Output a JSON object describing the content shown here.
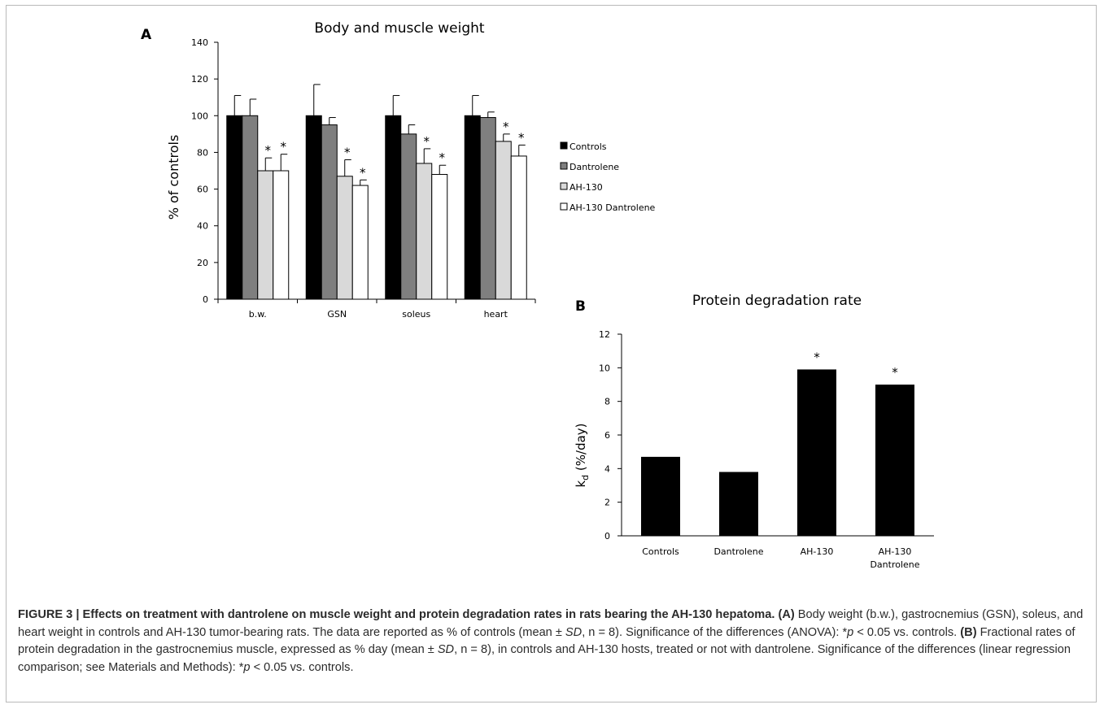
{
  "charts": [
    {
      "panel": "A",
      "chart_data": {
        "type": "bar",
        "title": "Body and muscle weight",
        "ylabel": "% of controls",
        "ylim": [
          0,
          140
        ],
        "yticks": [
          0,
          20,
          40,
          60,
          80,
          100,
          120,
          140
        ],
        "categories": [
          "b.w.",
          "GSN",
          "soleus",
          "heart"
        ],
        "legend_position": "right",
        "series": [
          {
            "name": "Controls",
            "color": "#000000",
            "values": [
              100,
              100,
              100,
              100
            ],
            "errors": [
              11,
              17,
              11,
              11
            ],
            "significant": [
              false,
              false,
              false,
              false
            ]
          },
          {
            "name": "Dantrolene",
            "color": "#7f7f7f",
            "values": [
              100,
              95,
              90,
              99
            ],
            "errors": [
              9,
              4,
              5,
              3
            ],
            "significant": [
              false,
              false,
              false,
              false
            ]
          },
          {
            "name": "AH-130",
            "color": "#d9d9d9",
            "values": [
              70,
              67,
              74,
              86
            ],
            "errors": [
              7,
              9,
              8,
              4
            ],
            "significant": [
              true,
              true,
              true,
              true
            ]
          },
          {
            "name": "AH-130 Dantrolene",
            "color": "#ffffff",
            "values": [
              70,
              62,
              68,
              78
            ],
            "errors": [
              9,
              3,
              5,
              6
            ],
            "significant": [
              true,
              true,
              true,
              true
            ]
          }
        ],
        "significance_marker": "*"
      }
    },
    {
      "panel": "B",
      "chart_data": {
        "type": "bar",
        "title": "Protein degradation rate",
        "ylabel_main": "k",
        "ylabel_sub": "d",
        "ylabel_rest": " (%/day)",
        "ylim": [
          0,
          12
        ],
        "yticks": [
          0,
          2,
          4,
          6,
          8,
          10,
          12
        ],
        "categories": [
          [
            "Controls"
          ],
          [
            "Dantrolene"
          ],
          [
            "AH-130"
          ],
          [
            "AH-130",
            "Dantrolene"
          ]
        ],
        "values": [
          4.7,
          3.8,
          9.9,
          9.0
        ],
        "significant": [
          false,
          false,
          true,
          true
        ],
        "color": "#000000",
        "significance_marker": "*"
      }
    }
  ],
  "caption": {
    "figure_label": "FIGURE 3 | Effects on treatment with dantrolene on muscle weight and protein degradation rates in rats bearing the AH-130 hepatoma.",
    "part_a_label": "(A)",
    "part_a_text_1": " Body weight (b.w.), gastrocnemius (GSN), soleus, and heart weight in controls and AH-130 tumor-bearing rats. The data are reported as % of controls (mean ± ",
    "sd": "SD",
    "n_a": ", n = 8). Significance of the differences (ANOVA): *",
    "p_a": "p",
    "after_p_a": " < 0.05 vs. controls. ",
    "part_b_label": "(B)",
    "part_b_text_1": " Fractional rates of protein degradation in the gastrocnemius muscle, expressed as % day (mean ± ",
    "sd_b": "SD",
    "n_b": ", n = 8), in controls and AH-130 hosts, treated or not with dantrolene. Significance of the differences (linear regression comparison; see Materials and Methods): *",
    "p_b": "p",
    "after_p_b": " < 0.05 vs. controls."
  }
}
